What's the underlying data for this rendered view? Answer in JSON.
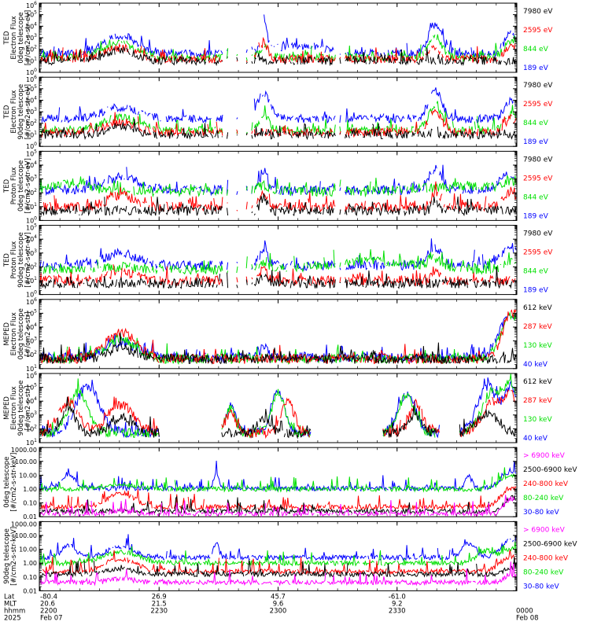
{
  "colors": {
    "black": "#000000",
    "red": "#ff0000",
    "green": "#00e000",
    "blue": "#0000ff",
    "magenta": "#ff00ff"
  },
  "chart_data": [
    {
      "type": "line",
      "panel": 1,
      "ylabel": [
        "TED",
        "Electron Flux",
        "0deg telescope",
        "[#/cm2-s-str-eV]"
      ],
      "yscale": "log",
      "ylim": [
        1,
        1000000
      ],
      "yticks": [
        {
          "v": 1,
          "e": "0"
        },
        {
          "v": 10,
          "e": "1"
        },
        {
          "v": 100,
          "e": "2"
        },
        {
          "v": 1000,
          "e": "3"
        },
        {
          "v": 10000,
          "e": "4"
        },
        {
          "v": 100000,
          "e": "5"
        },
        {
          "v": 1000000,
          "e": "6"
        }
      ],
      "series": [
        {
          "name": "7980 eV",
          "color": "black"
        },
        {
          "name": "2595 eV",
          "color": "red"
        },
        {
          "name": "844 eV",
          "color": "green"
        },
        {
          "name": "189 eV",
          "color": "blue"
        }
      ]
    },
    {
      "type": "line",
      "panel": 2,
      "ylabel": [
        "TED",
        "Electron Flux",
        "90deg telescope",
        "[#/cm2-s-str-eV]"
      ],
      "yscale": "log",
      "ylim": [
        1,
        1000000
      ],
      "yticks": [
        {
          "v": 1,
          "e": "0"
        },
        {
          "v": 10,
          "e": "1"
        },
        {
          "v": 100,
          "e": "2"
        },
        {
          "v": 1000,
          "e": "3"
        },
        {
          "v": 10000,
          "e": "4"
        },
        {
          "v": 100000,
          "e": "5"
        },
        {
          "v": 1000000,
          "e": "6"
        }
      ],
      "series": [
        {
          "name": "7980 eV",
          "color": "black"
        },
        {
          "name": "2595 eV",
          "color": "red"
        },
        {
          "name": "844 eV",
          "color": "green"
        },
        {
          "name": "189 eV",
          "color": "blue"
        }
      ]
    },
    {
      "type": "line",
      "panel": 3,
      "ylabel": [
        "TED",
        "Proton Flux",
        "0deg telescope",
        "[#/cm2-s-str-eV]"
      ],
      "yscale": "log",
      "ylim": [
        1,
        100000
      ],
      "yticks": [
        {
          "v": 1,
          "e": "0"
        },
        {
          "v": 10,
          "e": "1"
        },
        {
          "v": 100,
          "e": "2"
        },
        {
          "v": 1000,
          "e": "3"
        },
        {
          "v": 10000,
          "e": "4"
        },
        {
          "v": 100000,
          "e": "5"
        }
      ],
      "series": [
        {
          "name": "7980 eV",
          "color": "black"
        },
        {
          "name": "2595 eV",
          "color": "red"
        },
        {
          "name": "844 eV",
          "color": "green"
        },
        {
          "name": "189 eV",
          "color": "blue"
        }
      ]
    },
    {
      "type": "line",
      "panel": 4,
      "ylabel": [
        "TED",
        "Proton Flux",
        "90deg telescope",
        "[#/cm2-s-str-eV]"
      ],
      "yscale": "log",
      "ylim": [
        1,
        100000
      ],
      "yticks": [
        {
          "v": 1,
          "e": "0"
        },
        {
          "v": 10,
          "e": "1"
        },
        {
          "v": 100,
          "e": "2"
        },
        {
          "v": 1000,
          "e": "3"
        },
        {
          "v": 10000,
          "e": "4"
        },
        {
          "v": 100000,
          "e": "5"
        }
      ],
      "series": [
        {
          "name": "7980 eV",
          "color": "black"
        },
        {
          "name": "2595 eV",
          "color": "red"
        },
        {
          "name": "844 eV",
          "color": "green"
        },
        {
          "name": "189 eV",
          "color": "blue"
        }
      ]
    },
    {
      "type": "line",
      "panel": 5,
      "ylabel": [
        "MEPED",
        "Electron Flux",
        "0deg telescope",
        "[#/cm2-s-str]"
      ],
      "yscale": "log",
      "ylim": [
        10,
        1000000
      ],
      "yticks": [
        {
          "v": 10,
          "e": "1"
        },
        {
          "v": 100,
          "e": "2"
        },
        {
          "v": 1000,
          "e": "3"
        },
        {
          "v": 10000,
          "e": "4"
        },
        {
          "v": 100000,
          "e": "5"
        },
        {
          "v": 1000000,
          "e": "6"
        }
      ],
      "series": [
        {
          "name": "612 keV",
          "color": "black"
        },
        {
          "name": "287 keV",
          "color": "red"
        },
        {
          "name": "130 keV",
          "color": "green"
        },
        {
          "name": "40 keV",
          "color": "blue"
        }
      ]
    },
    {
      "type": "line",
      "panel": 6,
      "ylabel": [
        "MEPED",
        "Electron Flux",
        "90deg telescope",
        "[#/cm2-s-str]"
      ],
      "yscale": "log",
      "ylim": [
        10,
        1000000
      ],
      "yticks": [
        {
          "v": 10,
          "e": "1"
        },
        {
          "v": 100,
          "e": "2"
        },
        {
          "v": 1000,
          "e": "3"
        },
        {
          "v": 10000,
          "e": "4"
        },
        {
          "v": 100000,
          "e": "5"
        },
        {
          "v": 1000000,
          "e": "6"
        }
      ],
      "series": [
        {
          "name": "612 keV",
          "color": "black"
        },
        {
          "name": "287 keV",
          "color": "red"
        },
        {
          "name": "130 keV",
          "color": "green"
        },
        {
          "name": "40 keV",
          "color": "blue"
        }
      ]
    },
    {
      "type": "line",
      "panel": 7,
      "ylabel": [
        "0deg telescope",
        "[#/cm2-s-str-keV]"
      ],
      "yscale": "log",
      "ylim": [
        0.01,
        1000
      ],
      "yticks": [
        {
          "v": 0.01,
          "t": "0.01"
        },
        {
          "v": 0.1,
          "t": "0.10"
        },
        {
          "v": 1,
          "t": "1.00"
        },
        {
          "v": 10,
          "t": "10.00"
        },
        {
          "v": 100,
          "t": "100.00"
        },
        {
          "v": 1000,
          "t": "1000.00"
        }
      ],
      "series": [
        {
          "name": "> 6900 keV",
          "color": "magenta"
        },
        {
          "name": "2500-6900 keV",
          "color": "black"
        },
        {
          "name": "240-800 keV",
          "color": "red"
        },
        {
          "name": "80-240 keV",
          "color": "green"
        },
        {
          "name": "30-80 keV",
          "color": "blue"
        }
      ]
    },
    {
      "type": "line",
      "panel": 8,
      "ylabel": [
        "90deg telescope",
        "[#/cm2-s-str-keV]"
      ],
      "yscale": "log",
      "ylim": [
        0.01,
        1000
      ],
      "yticks": [
        {
          "v": 0.01,
          "t": "0.01"
        },
        {
          "v": 0.1,
          "t": "0.10"
        },
        {
          "v": 1,
          "t": "1.00"
        },
        {
          "v": 10,
          "t": "10.00"
        },
        {
          "v": 100,
          "t": "100.00"
        },
        {
          "v": 1000,
          "t": "1000.00"
        }
      ],
      "series": [
        {
          "name": "> 6900 keV",
          "color": "magenta"
        },
        {
          "name": "2500-6900 keV",
          "color": "black"
        },
        {
          "name": "240-800 keV",
          "color": "red"
        },
        {
          "name": "80-240 keV",
          "color": "green"
        },
        {
          "name": "30-80 keV",
          "color": "blue"
        }
      ]
    }
  ],
  "x_axis": {
    "row_labels": [
      "Lat",
      "MLT",
      "hhmm",
      "2025"
    ],
    "ticks": [
      {
        "lat": "-80.4",
        "mlt": "20.6",
        "hhmm": "2200",
        "date": "Feb 07"
      },
      {
        "lat": "26.9",
        "mlt": "21.5",
        "hhmm": "2230",
        "date": ""
      },
      {
        "lat": "45.7",
        "mlt": "9.6",
        "hhmm": "2300",
        "date": ""
      },
      {
        "lat": "-61.0",
        "mlt": "9.2",
        "hhmm": "2330",
        "date": ""
      },
      {
        "lat": "",
        "mlt": "",
        "hhmm": "0000",
        "date": "Feb 08"
      }
    ]
  }
}
